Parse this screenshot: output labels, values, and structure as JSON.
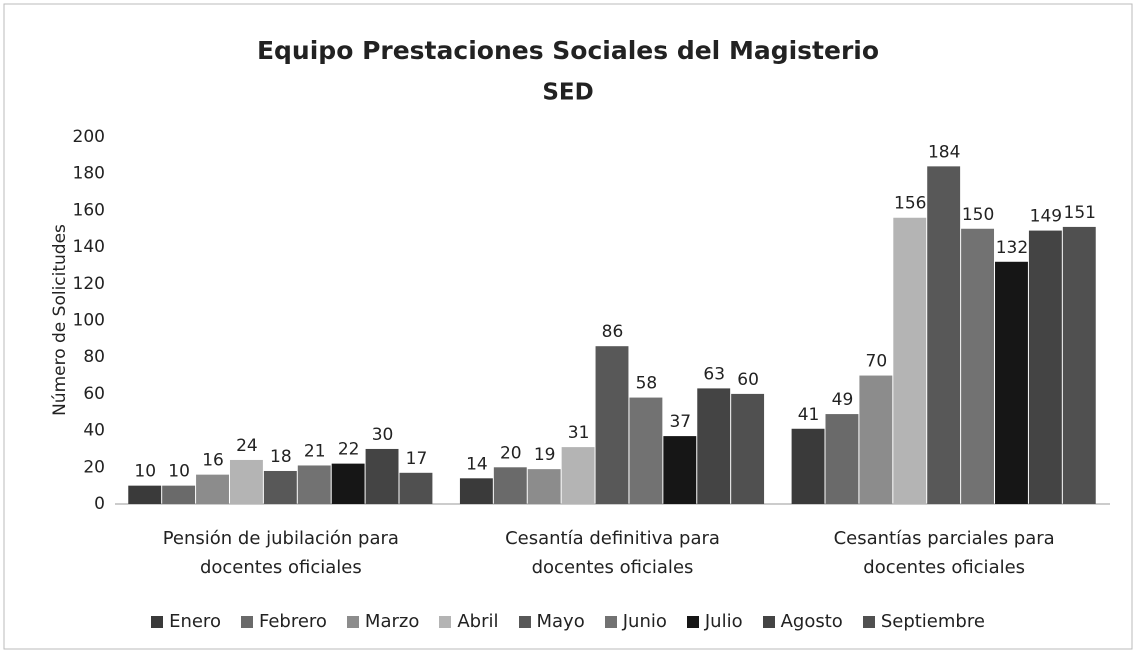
{
  "chart_data": {
    "type": "bar",
    "title": "Equipo Prestaciones Sociales del Magisterio",
    "subtitle": "SED",
    "y_label": "Número de Solicitudes",
    "categories": [
      "Pensión de jubilación para docentes oficiales",
      "Cesantía definitiva para docentes oficiales",
      "Cesantías parciales para docentes oficiales"
    ],
    "series": [
      {
        "name": "Enero",
        "color": "#3a3a3a",
        "values": [
          10,
          14,
          41
        ]
      },
      {
        "name": "Febrero",
        "color": "#6a6a6a",
        "values": [
          10,
          20,
          49
        ]
      },
      {
        "name": "Marzo",
        "color": "#8c8c8c",
        "values": [
          16,
          19,
          70
        ]
      },
      {
        "name": "Abril",
        "color": "#b4b4b4",
        "values": [
          24,
          31,
          156
        ]
      },
      {
        "name": "Mayo",
        "color": "#585858",
        "values": [
          18,
          86,
          184
        ]
      },
      {
        "name": "Junio",
        "color": "#727272",
        "values": [
          21,
          58,
          150
        ]
      },
      {
        "name": "Julio",
        "color": "#161616",
        "values": [
          22,
          37,
          132
        ]
      },
      {
        "name": "Agosto",
        "color": "#444444",
        "values": [
          30,
          63,
          149
        ]
      },
      {
        "name": "Septiembre",
        "color": "#505050",
        "values": [
          17,
          60,
          151
        ]
      }
    ],
    "ylim": [
      0,
      200
    ],
    "yticks": [
      0,
      20,
      40,
      60,
      80,
      100,
      120,
      140,
      160,
      180,
      200
    ],
    "grid": false,
    "legend": "bottom"
  }
}
